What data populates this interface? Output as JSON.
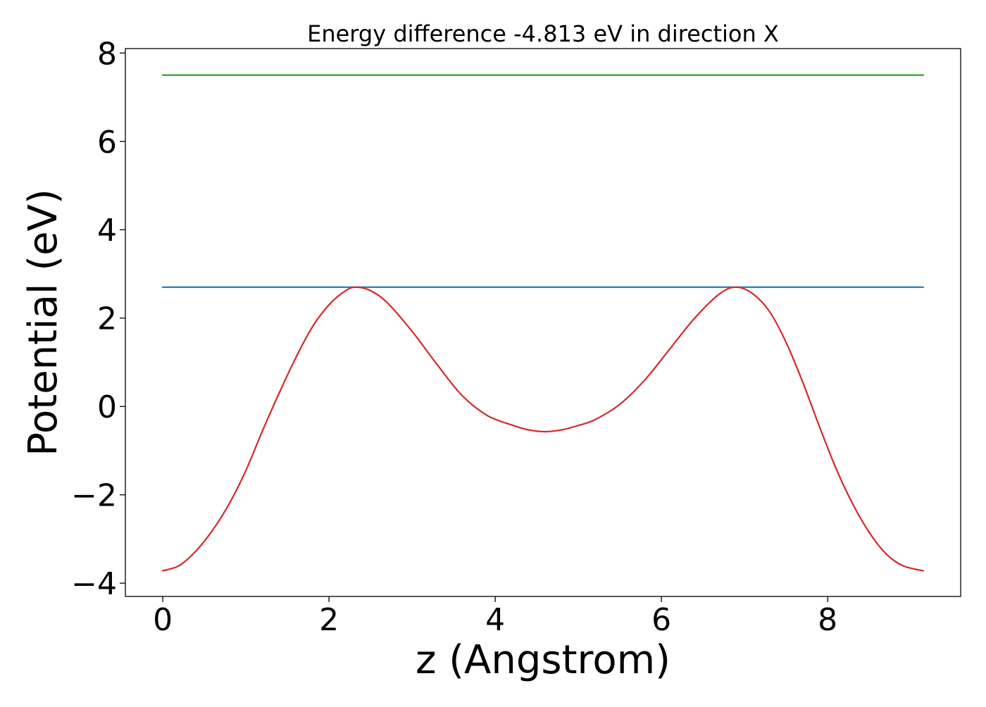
{
  "chart_data": {
    "type": "line",
    "title": "Energy difference -4.813 eV in direction X",
    "xlabel": "z (Angstrom)",
    "ylabel": "Potential (eV)",
    "xlim": [
      -0.45,
      9.6
    ],
    "ylim": [
      -4.3,
      8.1
    ],
    "xticks": [
      0,
      2,
      4,
      6,
      8
    ],
    "xtick_labels": [
      "0",
      "2",
      "4",
      "6",
      "8"
    ],
    "yticks": [
      -4,
      -2,
      0,
      2,
      4,
      6,
      8
    ],
    "ytick_labels": [
      "−4",
      "−2",
      "0",
      "2",
      "4",
      "6",
      "8"
    ],
    "grid": false,
    "legend": "none",
    "series": [
      {
        "color": "#2ca02c",
        "x": [
          0,
          9.15
        ],
        "y": [
          7.5,
          7.5
        ]
      },
      {
        "color": "#1f77b4",
        "x": [
          0,
          9.15
        ],
        "y": [
          2.7,
          2.7
        ]
      },
      {
        "color": "#d62728",
        "x": [
          0,
          0.2,
          0.4,
          0.6,
          0.8,
          1.0,
          1.2,
          1.4,
          1.6,
          1.8,
          2.0,
          2.2,
          2.33,
          2.5,
          2.7,
          3.0,
          3.3,
          3.6,
          3.9,
          4.2,
          4.4,
          4.6,
          4.8,
          5.0,
          5.2,
          5.5,
          5.8,
          6.1,
          6.4,
          6.7,
          6.9,
          7.1,
          7.3,
          7.5,
          7.7,
          7.9,
          8.1,
          8.3,
          8.5,
          8.7,
          8.9,
          9.15
        ],
        "y": [
          -3.72,
          -3.6,
          -3.27,
          -2.8,
          -2.2,
          -1.45,
          -0.55,
          0.3,
          1.1,
          1.8,
          2.3,
          2.62,
          2.7,
          2.62,
          2.35,
          1.7,
          0.95,
          0.25,
          -0.2,
          -0.42,
          -0.53,
          -0.57,
          -0.53,
          -0.43,
          -0.3,
          0.05,
          0.6,
          1.3,
          2.0,
          2.55,
          2.7,
          2.55,
          2.15,
          1.45,
          0.55,
          -0.45,
          -1.4,
          -2.2,
          -2.85,
          -3.33,
          -3.6,
          -3.72
        ]
      }
    ]
  }
}
